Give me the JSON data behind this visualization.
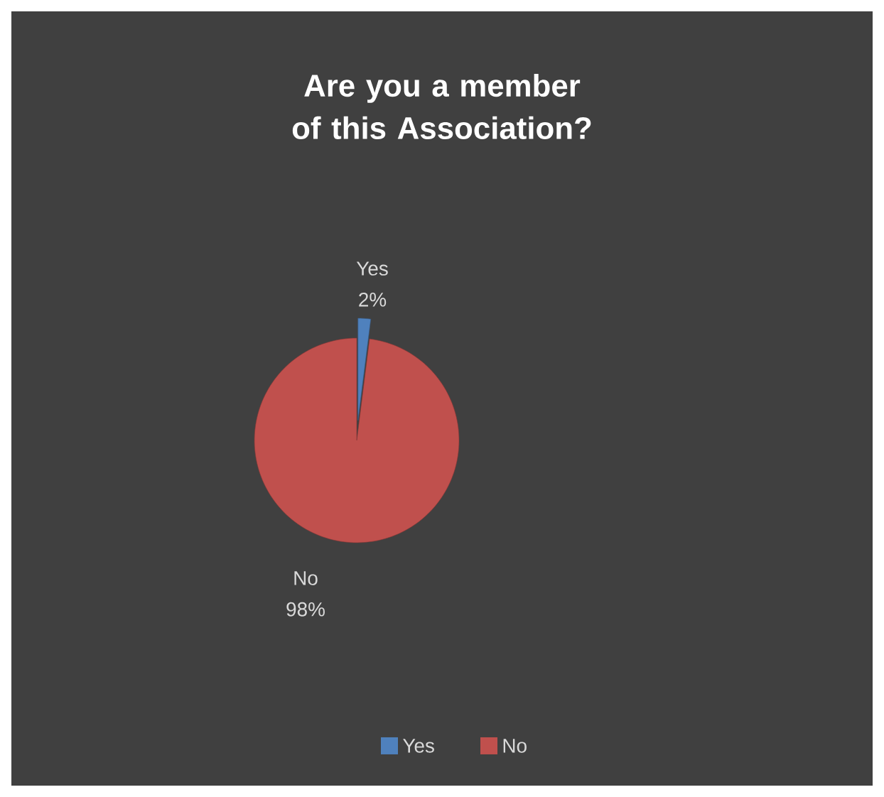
{
  "chart_data": {
    "type": "pie",
    "title": "Are you a member of this Association?",
    "categories": [
      "Yes",
      "No"
    ],
    "values": [
      2,
      98
    ],
    "value_labels": [
      "2%",
      "98%"
    ],
    "colors": [
      "#4f81bd",
      "#c0504d"
    ],
    "legend": "bottom"
  }
}
